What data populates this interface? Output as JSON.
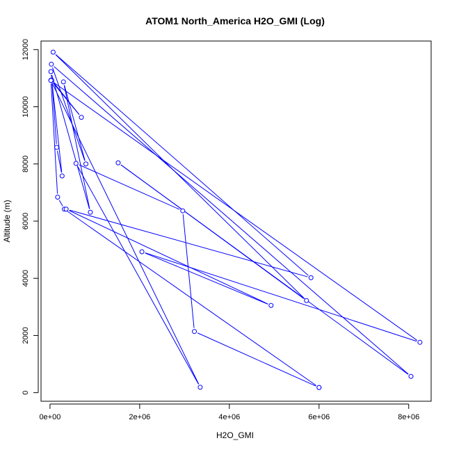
{
  "chart_data": {
    "type": "line",
    "title": "ATOM1 North_America H2O_GMI (Log)",
    "xlabel": "H2O_GMI",
    "ylabel": "Altitude (m)",
    "xlim": [
      -200000,
      8500000
    ],
    "ylim": [
      -300,
      12300
    ],
    "xticks": [
      0,
      2000000,
      4000000,
      6000000,
      8000000
    ],
    "xtick_labels": [
      "0e+00",
      "2e+06",
      "4e+06",
      "6e+06",
      "8e+06"
    ],
    "yticks": [
      0,
      2000,
      4000,
      6000,
      8000,
      10000,
      12000
    ],
    "ytick_labels": [
      "0",
      "2000",
      "4000",
      "6000",
      "8000",
      "10000",
      "12000"
    ],
    "grid": false,
    "legend": "none",
    "color": "#0000ff",
    "series": [
      {
        "x": [
          6000000,
          320000,
          170000,
          20000,
          700000,
          40000,
          150000,
          270000,
          20000,
          900000,
          300000,
          800000,
          30000,
          8050000,
          1520000,
          5720000,
          70000,
          5820000,
          360000,
          4930000,
          2050000,
          8250000,
          20000,
          3350000,
          580000,
          2960000,
          3220000,
          6000000
        ],
        "y": [
          180,
          6420,
          6840,
          10930,
          9630,
          10930,
          8580,
          7580,
          11230,
          6310,
          10870,
          8000,
          11490,
          570,
          8040,
          3220,
          11910,
          4020,
          6420,
          3050,
          4930,
          1760,
          10920,
          190,
          8020,
          6360,
          2140,
          180
        ]
      }
    ]
  }
}
